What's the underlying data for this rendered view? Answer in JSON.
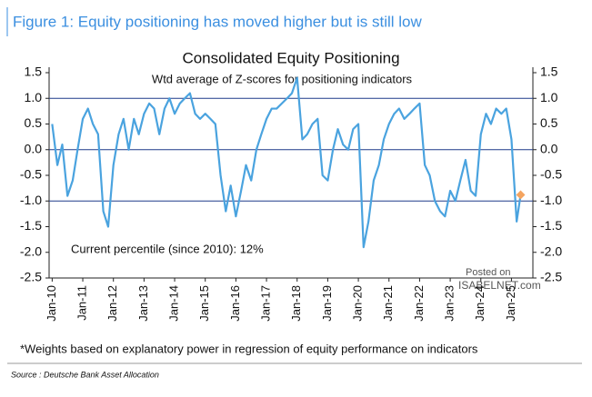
{
  "header": "Figure 1: Equity positioning has moved higher but is still low",
  "chart_data": {
    "type": "line",
    "title": "Consolidated Equity Positioning",
    "subtitle": "Wtd average of Z-scores for positioning indicators",
    "annotation": "Current percentile (since 2010): 12%",
    "x": [
      2010,
      2010.17,
      2010.33,
      2010.5,
      2010.67,
      2010.83,
      2011,
      2011.17,
      2011.33,
      2011.5,
      2011.67,
      2011.83,
      2012,
      2012.17,
      2012.33,
      2012.5,
      2012.67,
      2012.83,
      2013,
      2013.17,
      2013.33,
      2013.5,
      2013.67,
      2013.83,
      2014,
      2014.17,
      2014.33,
      2014.5,
      2014.67,
      2014.83,
      2015,
      2015.17,
      2015.33,
      2015.5,
      2015.67,
      2015.83,
      2016,
      2016.17,
      2016.33,
      2016.5,
      2016.67,
      2016.83,
      2017,
      2017.17,
      2017.33,
      2017.5,
      2017.67,
      2017.83,
      2018,
      2018.17,
      2018.33,
      2018.5,
      2018.67,
      2018.83,
      2019,
      2019.17,
      2019.33,
      2019.5,
      2019.67,
      2019.83,
      2020,
      2020.17,
      2020.33,
      2020.5,
      2020.67,
      2020.83,
      2021,
      2021.17,
      2021.33,
      2021.5,
      2021.67,
      2021.83,
      2022,
      2022.17,
      2022.33,
      2022.5,
      2022.67,
      2022.83,
      2023,
      2023.17,
      2023.33,
      2023.5,
      2023.67,
      2023.83,
      2024,
      2024.17,
      2024.33,
      2024.5,
      2024.67,
      2024.83,
      2025,
      2025.17,
      2025.3
    ],
    "series": [
      {
        "color": "#4aa3df",
        "values": [
          0.5,
          -0.3,
          0.1,
          -0.9,
          -0.6,
          0.0,
          0.6,
          0.8,
          0.5,
          0.3,
          -1.2,
          -1.5,
          -0.3,
          0.3,
          0.6,
          0.0,
          0.6,
          0.3,
          0.7,
          0.9,
          0.8,
          0.3,
          0.8,
          1.0,
          0.7,
          0.9,
          1.0,
          1.1,
          0.7,
          0.6,
          0.7,
          0.6,
          0.5,
          -0.5,
          -1.2,
          -0.7,
          -1.3,
          -0.8,
          -0.3,
          -0.6,
          0.0,
          0.3,
          0.6,
          0.8,
          0.8,
          0.9,
          1.0,
          1.1,
          1.4,
          0.2,
          0.3,
          0.5,
          0.6,
          -0.5,
          -0.6,
          0.0,
          0.4,
          0.1,
          0.0,
          0.4,
          0.5,
          -1.9,
          -1.4,
          -0.6,
          -0.3,
          0.2,
          0.5,
          0.7,
          0.8,
          0.6,
          0.7,
          0.8,
          0.9,
          -0.3,
          -0.5,
          -1.0,
          -1.2,
          -1.3,
          -0.8,
          -1.0,
          -0.6,
          -0.2,
          -0.8,
          -0.9,
          0.3,
          0.7,
          0.5,
          0.8,
          0.7,
          0.8,
          0.2,
          -1.4,
          -0.88
        ]
      }
    ],
    "highlight_last_color": "#f4a460",
    "xlim": [
      2009.9,
      2025.7
    ],
    "xticks": [
      {
        "value": 2010,
        "label": "Jan-10"
      },
      {
        "value": 2011,
        "label": "Jan-11"
      },
      {
        "value": 2012,
        "label": "Jan-12"
      },
      {
        "value": 2013,
        "label": "Jan-13"
      },
      {
        "value": 2014,
        "label": "Jan-14"
      },
      {
        "value": 2015,
        "label": "Jan-15"
      },
      {
        "value": 2016,
        "label": "Jan-16"
      },
      {
        "value": 2017,
        "label": "Jan-17"
      },
      {
        "value": 2018,
        "label": "Jan-18"
      },
      {
        "value": 2019,
        "label": "Jan-19"
      },
      {
        "value": 2020,
        "label": "Jan-20"
      },
      {
        "value": 2021,
        "label": "Jan-21"
      },
      {
        "value": 2022,
        "label": "Jan-22"
      },
      {
        "value": 2023,
        "label": "Jan-23"
      },
      {
        "value": 2024,
        "label": "Jan-24"
      },
      {
        "value": 2025,
        "label": "Jan-25"
      }
    ],
    "ylim": [
      -2.5,
      1.5
    ],
    "yticks": [
      1.5,
      {
        "value": 1,
        "label": "1.0"
      },
      0.5,
      {
        "value": 0,
        "label": "0.0"
      },
      -0.5,
      {
        "value": -1,
        "label": "-1.0"
      },
      -1.5,
      {
        "value": -2,
        "label": "-2.0"
      },
      -2.5
    ],
    "reference_lines": [
      1,
      0,
      -1
    ],
    "reference_color": "#1f3a8a"
  },
  "footnote": "*Weights based on explanatory power in regression of equity performance on indicators",
  "source": "Source : Deutsche Bank Asset Allocation",
  "watermark": [
    "Posted on",
    "ISABELNET.com"
  ]
}
